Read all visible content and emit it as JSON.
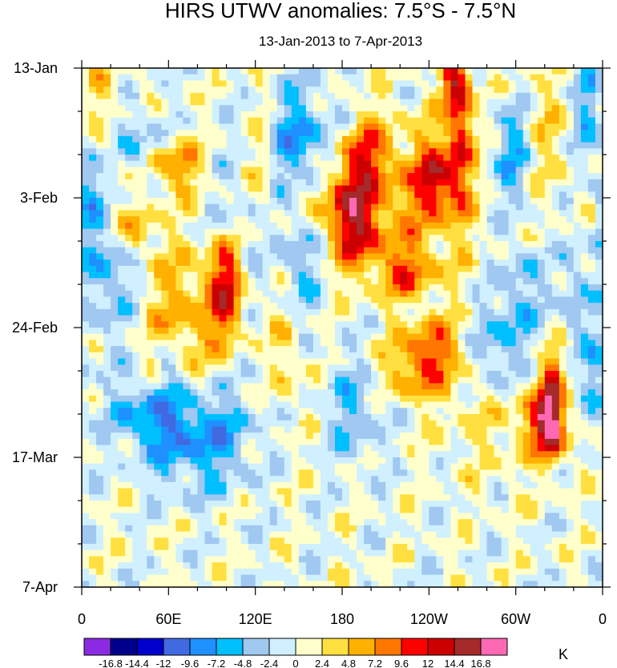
{
  "chart_data": {
    "type": "heatmap",
    "title": "HIRS UTWV anomalies: 7.5°S - 7.5°N",
    "subtitle": "13-Jan-2013 to 7-Apr-2013",
    "x_tick_labels": [
      "0",
      "60E",
      "120E",
      "180",
      "120W",
      "60W",
      "0"
    ],
    "y_tick_labels": [
      "13-Jan",
      "3-Feb",
      "24-Feb",
      "17-Mar",
      "7-Apr"
    ],
    "xlim_degrees_east": [
      0,
      360
    ],
    "time_range": [
      "13-Jan-2013",
      "7-Apr-2013"
    ],
    "units": "K",
    "colorbar_levels": [
      "-16.8",
      "-14.4",
      "-12",
      "-9.6",
      "-7.2",
      "-4.8",
      "-2.4",
      "0",
      "2.4",
      "4.8",
      "7.2",
      "9.6",
      "12",
      "14.4",
      "16.8"
    ],
    "colorbar_colors": [
      "#8a2be2",
      "#00008b",
      "#0000cd",
      "#4169e1",
      "#1e90ff",
      "#00bfff",
      "#a0c8f0",
      "#d0f0ff",
      "#ffffcc",
      "#ffe040",
      "#ffb000",
      "#ff7700",
      "#ff0000",
      "#cc0000",
      "#a52a2a",
      "#ff69b4"
    ],
    "features": [
      {
        "lon": 100,
        "day": 35,
        "sx": 9,
        "sy": 6,
        "amp": 13
      },
      {
        "lon": 70,
        "day": 42,
        "sx": 20,
        "sy": 10,
        "amp": 6
      },
      {
        "lon": 190,
        "day": 26,
        "sx": 12,
        "sy": 5,
        "amp": 11
      },
      {
        "lon": 175,
        "day": 21,
        "sx": 18,
        "sy": 4,
        "amp": 6
      },
      {
        "lon": 245,
        "day": 18,
        "sx": 10,
        "sy": 4,
        "amp": 10
      },
      {
        "lon": 230,
        "day": 22,
        "sx": 25,
        "sy": 10,
        "amp": 5
      },
      {
        "lon": 262,
        "day": 8,
        "sx": 6,
        "sy": 10,
        "amp": 11
      },
      {
        "lon": 255,
        "day": 2,
        "sx": 5,
        "sy": 3,
        "amp": 8
      },
      {
        "lon": 195,
        "day": 14,
        "sx": 12,
        "sy": 4,
        "amp": 9
      },
      {
        "lon": 225,
        "day": 33,
        "sx": 12,
        "sy": 3,
        "amp": 7
      },
      {
        "lon": 240,
        "day": 45,
        "sx": 14,
        "sy": 3,
        "amp": 8
      },
      {
        "lon": 320,
        "day": 57,
        "sx": 10,
        "sy": 3,
        "amp": 9
      },
      {
        "lon": 325,
        "day": 60,
        "sx": 6,
        "sy": 3,
        "amp": 8
      },
      {
        "lon": 325,
        "day": 52,
        "sx": 5,
        "sy": 4,
        "amp": 9
      },
      {
        "lon": 300,
        "day": 53,
        "sx": 30,
        "sy": 8,
        "amp": 5
      },
      {
        "lon": 230,
        "day": 50,
        "sx": 20,
        "sy": 3,
        "amp": 6
      },
      {
        "lon": 65,
        "day": 16,
        "sx": 14,
        "sy": 3,
        "amp": 7
      },
      {
        "lon": 125,
        "day": 18,
        "sx": 8,
        "sy": 8,
        "amp": 5
      },
      {
        "lon": 35,
        "day": 26,
        "sx": 10,
        "sy": 3,
        "amp": 6
      },
      {
        "lon": 15,
        "day": 6,
        "sx": 10,
        "sy": 10,
        "amp": 4
      },
      {
        "lon": 320,
        "day": 12,
        "sx": 14,
        "sy": 8,
        "amp": 4
      },
      {
        "lon": 140,
        "day": 45,
        "sx": 8,
        "sy": 8,
        "amp": 4
      },
      {
        "lon": 80,
        "day": 59,
        "sx": 25,
        "sy": 6,
        "amp": -9
      },
      {
        "lon": 60,
        "day": 48,
        "sx": 6,
        "sy": 3,
        "amp": -5
      },
      {
        "lon": 150,
        "day": 12,
        "sx": 16,
        "sy": 6,
        "amp": -8
      },
      {
        "lon": 150,
        "day": 32,
        "sx": 10,
        "sy": 6,
        "amp": -5
      },
      {
        "lon": 300,
        "day": 14,
        "sx": 10,
        "sy": 6,
        "amp": -7
      },
      {
        "lon": 290,
        "day": 47,
        "sx": 14,
        "sy": 6,
        "amp": -8
      },
      {
        "lon": 305,
        "day": 37,
        "sx": 10,
        "sy": 6,
        "amp": -5
      },
      {
        "lon": 20,
        "day": 33,
        "sx": 12,
        "sy": 8,
        "amp": -6
      },
      {
        "lon": 45,
        "day": 56,
        "sx": 18,
        "sy": 4,
        "amp": -6
      },
      {
        "lon": 5,
        "day": 20,
        "sx": 6,
        "sy": 6,
        "amp": -6
      },
      {
        "lon": 350,
        "day": 7,
        "sx": 8,
        "sy": 6,
        "amp": -6
      },
      {
        "lon": 340,
        "day": 38,
        "sx": 8,
        "sy": 8,
        "amp": -5
      },
      {
        "lon": 35,
        "day": 12,
        "sx": 10,
        "sy": 4,
        "amp": -6
      },
      {
        "lon": 355,
        "day": 52,
        "sx": 6,
        "sy": 6,
        "amp": -6
      },
      {
        "lon": 190,
        "day": 55,
        "sx": 14,
        "sy": 6,
        "amp": -5
      },
      {
        "lon": 110,
        "day": 27,
        "sx": 18,
        "sy": 8,
        "amp": -4
      }
    ]
  }
}
